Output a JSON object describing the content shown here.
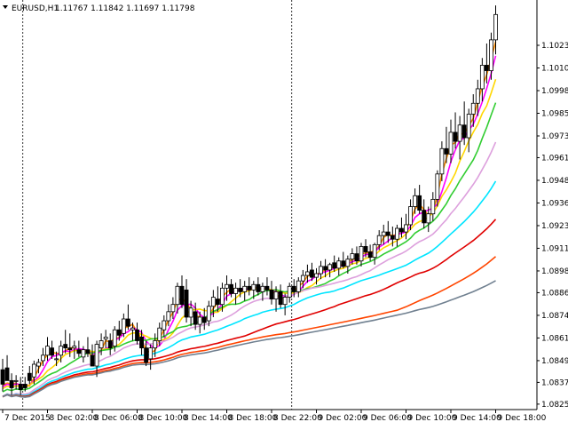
{
  "header": {
    "symbol": "EURUSD,H1",
    "ohlc": "1.11767 1.11842 1.11697 1.11798"
  },
  "chart_data": {
    "type": "candlestick",
    "symbol": "EURUSD",
    "timeframe": "H1",
    "ylim": [
      1.0822,
      1.1048
    ],
    "y_ticks": [
      "1.10230",
      "1.10105",
      "1.09980",
      "1.09855",
      "1.09730",
      "1.09610",
      "1.09485",
      "1.09360",
      "1.09235",
      "1.09110",
      "1.08985",
      "1.08865",
      "1.08740",
      "1.08615",
      "1.08490",
      "1.08370",
      "1.08250"
    ],
    "x_ticks": [
      {
        "index": 0,
        "label": "7 Dec 2015"
      },
      {
        "index": 10,
        "label": "8 Dec 02:00"
      },
      {
        "index": 20,
        "label": "8 Dec 06:00"
      },
      {
        "index": 30,
        "label": "8 Dec 10:00"
      },
      {
        "index": 40,
        "label": "8 Dec 14:00"
      },
      {
        "index": 50,
        "label": "8 Dec 18:00"
      },
      {
        "index": 60,
        "label": "8 Dec 22:00"
      },
      {
        "index": 70,
        "label": "9 Dec 02:00"
      },
      {
        "index": 80,
        "label": "9 Dec 06:00"
      },
      {
        "index": 90,
        "label": "9 Dec 10:00"
      },
      {
        "index": 100,
        "label": "9 Dec 14:00"
      },
      {
        "index": 110,
        "label": "9 Dec 18:00"
      }
    ],
    "period_separators": [
      4.5,
      64.5
    ],
    "candles": [
      {
        "o": 1.0844,
        "h": 1.085,
        "l": 1.0832,
        "c": 1.0836
      },
      {
        "o": 1.0845,
        "h": 1.0852,
        "l": 1.084,
        "c": 1.0838
      },
      {
        "o": 1.0838,
        "h": 1.0842,
        "l": 1.083,
        "c": 1.0834
      },
      {
        "o": 1.0838,
        "h": 1.0841,
        "l": 1.0833,
        "c": 1.0838
      },
      {
        "o": 1.0836,
        "h": 1.084,
        "l": 1.083,
        "c": 1.0833
      },
      {
        "o": 1.0836,
        "h": 1.084,
        "l": 1.0832,
        "c": 1.0834
      },
      {
        "o": 1.0842,
        "h": 1.0846,
        "l": 1.0836,
        "c": 1.0838
      },
      {
        "o": 1.084,
        "h": 1.0849,
        "l": 1.0836,
        "c": 1.0847
      },
      {
        "o": 1.0846,
        "h": 1.085,
        "l": 1.0842,
        "c": 1.0848
      },
      {
        "o": 1.0849,
        "h": 1.0856,
        "l": 1.0846,
        "c": 1.0852
      },
      {
        "o": 1.0852,
        "h": 1.0862,
        "l": 1.0849,
        "c": 1.0857
      },
      {
        "o": 1.0856,
        "h": 1.086,
        "l": 1.085,
        "c": 1.0852
      },
      {
        "o": 1.085,
        "h": 1.0854,
        "l": 1.0846,
        "c": 1.085
      },
      {
        "o": 1.0852,
        "h": 1.086,
        "l": 1.0848,
        "c": 1.0857
      },
      {
        "o": 1.0858,
        "h": 1.0866,
        "l": 1.0853,
        "c": 1.0856
      },
      {
        "o": 1.0856,
        "h": 1.0864,
        "l": 1.0851,
        "c": 1.0855
      },
      {
        "o": 1.0856,
        "h": 1.086,
        "l": 1.085,
        "c": 1.0857
      },
      {
        "o": 1.0855,
        "h": 1.086,
        "l": 1.0851,
        "c": 1.0853
      },
      {
        "o": 1.0851,
        "h": 1.0857,
        "l": 1.0848,
        "c": 1.0855
      },
      {
        "o": 1.0855,
        "h": 1.0862,
        "l": 1.0851,
        "c": 1.0853
      },
      {
        "o": 1.0852,
        "h": 1.0858,
        "l": 1.0848,
        "c": 1.0846
      },
      {
        "o": 1.0846,
        "h": 1.086,
        "l": 1.084,
        "c": 1.0858
      },
      {
        "o": 1.0856,
        "h": 1.0864,
        "l": 1.0852,
        "c": 1.086
      },
      {
        "o": 1.0861,
        "h": 1.0866,
        "l": 1.0856,
        "c": 1.0862
      },
      {
        "o": 1.086,
        "h": 1.0864,
        "l": 1.0852,
        "c": 1.0856
      },
      {
        "o": 1.0857,
        "h": 1.0868,
        "l": 1.0854,
        "c": 1.0866
      },
      {
        "o": 1.0866,
        "h": 1.0871,
        "l": 1.086,
        "c": 1.0863
      },
      {
        "o": 1.0864,
        "h": 1.0875,
        "l": 1.0862,
        "c": 1.0872
      },
      {
        "o": 1.0872,
        "h": 1.088,
        "l": 1.0866,
        "c": 1.0868
      },
      {
        "o": 1.0866,
        "h": 1.087,
        "l": 1.086,
        "c": 1.0867
      },
      {
        "o": 1.0866,
        "h": 1.087,
        "l": 1.0858,
        "c": 1.086
      },
      {
        "o": 1.0862,
        "h": 1.0866,
        "l": 1.0852,
        "c": 1.0856
      },
      {
        "o": 1.0856,
        "h": 1.086,
        "l": 1.0846,
        "c": 1.0848
      },
      {
        "o": 1.085,
        "h": 1.0858,
        "l": 1.0844,
        "c": 1.0856
      },
      {
        "o": 1.0856,
        "h": 1.0864,
        "l": 1.0851,
        "c": 1.086
      },
      {
        "o": 1.086,
        "h": 1.087,
        "l": 1.0857,
        "c": 1.0867
      },
      {
        "o": 1.0866,
        "h": 1.0874,
        "l": 1.0862,
        "c": 1.0871
      },
      {
        "o": 1.0871,
        "h": 1.088,
        "l": 1.0868,
        "c": 1.0876
      },
      {
        "o": 1.0876,
        "h": 1.0884,
        "l": 1.0872,
        "c": 1.088
      },
      {
        "o": 1.088,
        "h": 1.0892,
        "l": 1.0875,
        "c": 1.089
      },
      {
        "o": 1.089,
        "h": 1.0896,
        "l": 1.0878,
        "c": 1.088
      },
      {
        "o": 1.0888,
        "h": 1.0894,
        "l": 1.087,
        "c": 1.0873
      },
      {
        "o": 1.0873,
        "h": 1.0882,
        "l": 1.0868,
        "c": 1.0878
      },
      {
        "o": 1.0876,
        "h": 1.0881,
        "l": 1.0866,
        "c": 1.0869
      },
      {
        "o": 1.0869,
        "h": 1.0876,
        "l": 1.0864,
        "c": 1.0873
      },
      {
        "o": 1.0873,
        "h": 1.0878,
        "l": 1.0866,
        "c": 1.087
      },
      {
        "o": 1.0871,
        "h": 1.0882,
        "l": 1.0868,
        "c": 1.0879
      },
      {
        "o": 1.0879,
        "h": 1.0888,
        "l": 1.0873,
        "c": 1.0884
      },
      {
        "o": 1.0883,
        "h": 1.089,
        "l": 1.0876,
        "c": 1.088
      },
      {
        "o": 1.088,
        "h": 1.0892,
        "l": 1.0876,
        "c": 1.0889
      },
      {
        "o": 1.0889,
        "h": 1.0896,
        "l": 1.0882,
        "c": 1.0891
      },
      {
        "o": 1.0891,
        "h": 1.0894,
        "l": 1.0884,
        "c": 1.0886
      },
      {
        "o": 1.0886,
        "h": 1.0892,
        "l": 1.088,
        "c": 1.0889
      },
      {
        "o": 1.0889,
        "h": 1.0894,
        "l": 1.0884,
        "c": 1.0887
      },
      {
        "o": 1.0887,
        "h": 1.0893,
        "l": 1.0882,
        "c": 1.089
      },
      {
        "o": 1.089,
        "h": 1.0895,
        "l": 1.0885,
        "c": 1.0888
      },
      {
        "o": 1.0888,
        "h": 1.0893,
        "l": 1.0883,
        "c": 1.0891
      },
      {
        "o": 1.0891,
        "h": 1.0895,
        "l": 1.0885,
        "c": 1.0887
      },
      {
        "o": 1.0887,
        "h": 1.0892,
        "l": 1.0882,
        "c": 1.089
      },
      {
        "o": 1.089,
        "h": 1.0895,
        "l": 1.0885,
        "c": 1.0888
      },
      {
        "o": 1.0888,
        "h": 1.0893,
        "l": 1.088,
        "c": 1.0883
      },
      {
        "o": 1.0883,
        "h": 1.089,
        "l": 1.0876,
        "c": 1.0887
      },
      {
        "o": 1.0887,
        "h": 1.0891,
        "l": 1.0878,
        "c": 1.088
      },
      {
        "o": 1.088,
        "h": 1.0886,
        "l": 1.0874,
        "c": 1.0884
      },
      {
        "o": 1.0884,
        "h": 1.0892,
        "l": 1.0881,
        "c": 1.089
      },
      {
        "o": 1.089,
        "h": 1.0894,
        "l": 1.0884,
        "c": 1.0887
      },
      {
        "o": 1.0887,
        "h": 1.0895,
        "l": 1.0884,
        "c": 1.0893
      },
      {
        "o": 1.0893,
        "h": 1.0899,
        "l": 1.0889,
        "c": 1.0896
      },
      {
        "o": 1.0896,
        "h": 1.0902,
        "l": 1.0892,
        "c": 1.0898
      },
      {
        "o": 1.0899,
        "h": 1.0903,
        "l": 1.0893,
        "c": 1.0895
      },
      {
        "o": 1.0895,
        "h": 1.09,
        "l": 1.0891,
        "c": 1.0897
      },
      {
        "o": 1.0897,
        "h": 1.0904,
        "l": 1.0894,
        "c": 1.0901
      },
      {
        "o": 1.0901,
        "h": 1.0905,
        "l": 1.0895,
        "c": 1.0899
      },
      {
        "o": 1.0899,
        "h": 1.0903,
        "l": 1.0895,
        "c": 1.0902
      },
      {
        "o": 1.0903,
        "h": 1.0907,
        "l": 1.0898,
        "c": 1.09
      },
      {
        "o": 1.09,
        "h": 1.0906,
        "l": 1.0896,
        "c": 1.0904
      },
      {
        "o": 1.0904,
        "h": 1.0909,
        "l": 1.09,
        "c": 1.0901
      },
      {
        "o": 1.0901,
        "h": 1.0907,
        "l": 1.0897,
        "c": 1.0905
      },
      {
        "o": 1.0905,
        "h": 1.0911,
        "l": 1.0902,
        "c": 1.0908
      },
      {
        "o": 1.0908,
        "h": 1.0912,
        "l": 1.0902,
        "c": 1.0904
      },
      {
        "o": 1.0904,
        "h": 1.0914,
        "l": 1.0901,
        "c": 1.0912
      },
      {
        "o": 1.0912,
        "h": 1.0916,
        "l": 1.0906,
        "c": 1.0909
      },
      {
        "o": 1.0909,
        "h": 1.0913,
        "l": 1.0904,
        "c": 1.0906
      },
      {
        "o": 1.0906,
        "h": 1.0914,
        "l": 1.0902,
        "c": 1.0913
      },
      {
        "o": 1.0913,
        "h": 1.0921,
        "l": 1.091,
        "c": 1.0918
      },
      {
        "o": 1.0918,
        "h": 1.0924,
        "l": 1.0913,
        "c": 1.092
      },
      {
        "o": 1.092,
        "h": 1.0926,
        "l": 1.0914,
        "c": 1.0918
      },
      {
        "o": 1.0918,
        "h": 1.0923,
        "l": 1.0912,
        "c": 1.0916
      },
      {
        "o": 1.0916,
        "h": 1.0924,
        "l": 1.0912,
        "c": 1.0922
      },
      {
        "o": 1.0922,
        "h": 1.0928,
        "l": 1.0917,
        "c": 1.092
      },
      {
        "o": 1.092,
        "h": 1.093,
        "l": 1.0916,
        "c": 1.0924
      },
      {
        "o": 1.0924,
        "h": 1.0938,
        "l": 1.0921,
        "c": 1.0934
      },
      {
        "o": 1.0934,
        "h": 1.0944,
        "l": 1.093,
        "c": 1.094
      },
      {
        "o": 1.094,
        "h": 1.0946,
        "l": 1.093,
        "c": 1.0932
      },
      {
        "o": 1.0932,
        "h": 1.0938,
        "l": 1.0922,
        "c": 1.0925
      },
      {
        "o": 1.0925,
        "h": 1.0934,
        "l": 1.092,
        "c": 1.093
      },
      {
        "o": 1.093,
        "h": 1.0942,
        "l": 1.0926,
        "c": 1.0938
      },
      {
        "o": 1.0938,
        "h": 1.0954,
        "l": 1.0934,
        "c": 1.0952
      },
      {
        "o": 1.0952,
        "h": 1.097,
        "l": 1.0948,
        "c": 1.0966
      },
      {
        "o": 1.0966,
        "h": 1.0978,
        "l": 1.0958,
        "c": 1.0963
      },
      {
        "o": 1.0963,
        "h": 1.0982,
        "l": 1.0958,
        "c": 1.0975
      },
      {
        "o": 1.0975,
        "h": 1.0986,
        "l": 1.0966,
        "c": 1.097
      },
      {
        "o": 1.097,
        "h": 1.0984,
        "l": 1.096,
        "c": 1.0979
      },
      {
        "o": 1.0979,
        "h": 1.0992,
        "l": 1.0968,
        "c": 1.0972
      },
      {
        "o": 1.0972,
        "h": 1.0988,
        "l": 1.0964,
        "c": 1.0985
      },
      {
        "o": 1.0985,
        "h": 1.0996,
        "l": 1.0978,
        "c": 1.0991
      },
      {
        "o": 1.0991,
        "h": 1.1004,
        "l": 1.0984,
        "c": 1.0999
      },
      {
        "o": 1.0999,
        "h": 1.1016,
        "l": 1.0992,
        "c": 1.1012
      },
      {
        "o": 1.1012,
        "h": 1.1024,
        "l": 1.1002,
        "c": 1.1009
      },
      {
        "o": 1.1009,
        "h": 1.103,
        "l": 1.1004,
        "c": 1.1026
      },
      {
        "o": 1.1026,
        "h": 1.1045,
        "l": 1.1018,
        "c": 1.104
      }
    ],
    "moving_averages": [
      {
        "period": 3,
        "color": "#ff8c00"
      },
      {
        "period": 5,
        "color": "#ff00ff"
      },
      {
        "period": 8,
        "color": "#ffd700"
      },
      {
        "period": 13,
        "color": "#32cd32"
      },
      {
        "period": 21,
        "color": "#dda0dd"
      },
      {
        "period": 34,
        "color": "#00e5ff"
      },
      {
        "period": 55,
        "color": "#e00000"
      },
      {
        "period": 89,
        "color": "#ff4500"
      },
      {
        "period": 144,
        "color": "#708090"
      }
    ],
    "colors": {
      "background": "#ffffff",
      "candle_up": "#ffffff",
      "candle_down": "#000000",
      "outline": "#000000",
      "axis": "#000000",
      "separator": "#000000"
    }
  }
}
